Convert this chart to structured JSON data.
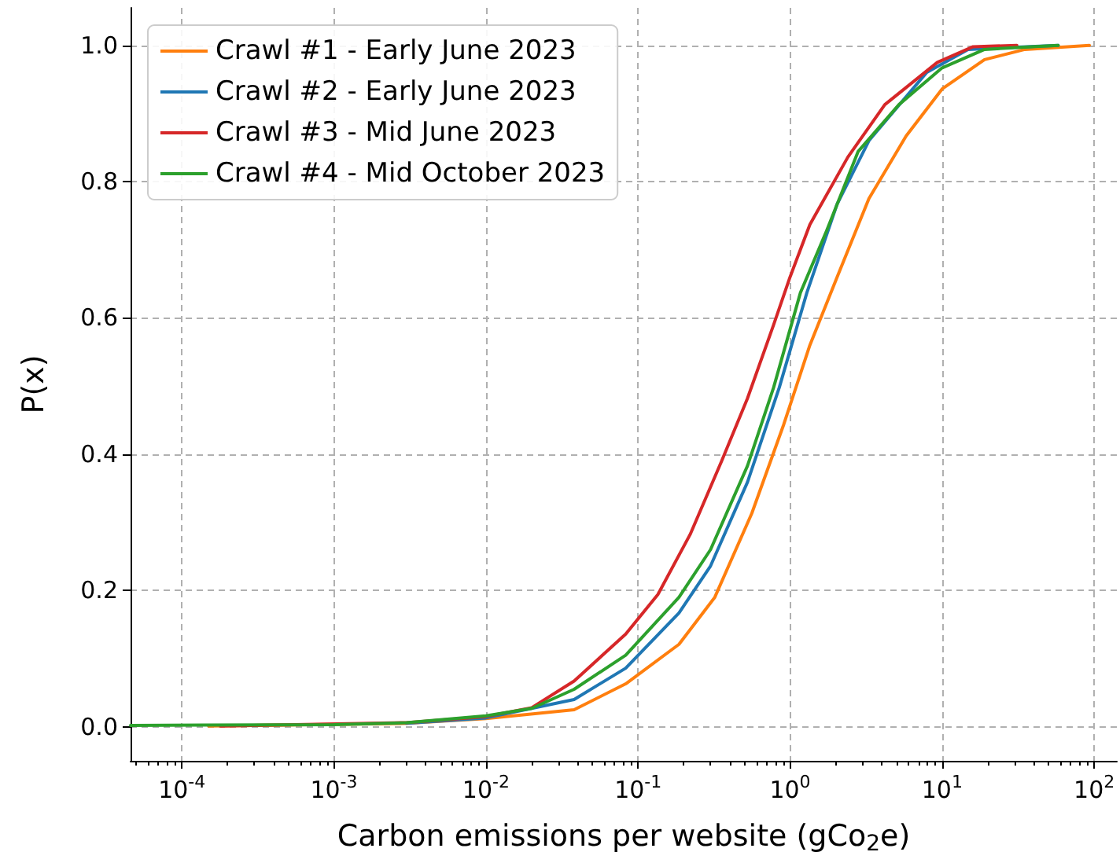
{
  "chart_data": {
    "type": "line",
    "xlabel": "Carbon emissions per website (gCo$_{2}$e)",
    "ylabel": "P(x)",
    "log": "x",
    "grid": true,
    "legend": "top left",
    "line_style": "solid",
    "xlim": [
      4.6e-05,
      141
    ],
    "ylim": [
      -0.05,
      1.055
    ],
    "xticks": [
      {
        "value": 0.0001,
        "label": "10$^{-4}$"
      },
      {
        "value": 0.001,
        "label": "10$^{-3}$"
      },
      {
        "value": 0.01,
        "label": "10$^{-2}$"
      },
      {
        "value": 0.1,
        "label": "10$^{-1}$"
      },
      {
        "value": 1,
        "label": "10$^{0}$"
      },
      {
        "value": 10,
        "label": "10$^{1}$"
      },
      {
        "value": 100,
        "label": "10$^{2}$"
      }
    ],
    "yticks": [
      {
        "value": 0,
        "label": "0.0"
      },
      {
        "value": 0.2,
        "label": "0.2"
      },
      {
        "value": 0.4,
        "label": "0.4"
      },
      {
        "value": 0.6,
        "label": "0.6"
      },
      {
        "value": 0.8,
        "label": "0.8"
      },
      {
        "value": 1,
        "label": "1.0"
      }
    ],
    "series": [
      {
        "name": "Crawl #1 - Early June 2023",
        "color": "#ff7f0e",
        "x": [
          0.00015,
          0.003,
          0.01,
          0.038,
          0.083,
          0.186,
          0.32,
          0.56,
          0.91,
          1.35,
          2.04,
          3.3,
          5.8,
          10,
          19,
          35,
          93
        ],
        "values": [
          0.001,
          0.005,
          0.012,
          0.025,
          0.063,
          0.121,
          0.19,
          0.313,
          0.444,
          0.56,
          0.66,
          0.775,
          0.867,
          0.936,
          0.979,
          0.994,
          1.0
        ]
      },
      {
        "name": "Crawl #2 - Early June 2023",
        "color": "#1f77b4",
        "x": [
          0.003,
          0.01,
          0.02,
          0.038,
          0.083,
          0.186,
          0.3,
          0.525,
          0.85,
          1.29,
          2.04,
          3.3,
          7.9,
          14.8,
          58
        ],
        "values": [
          0.005,
          0.013,
          0.027,
          0.04,
          0.086,
          0.167,
          0.236,
          0.359,
          0.498,
          0.637,
          0.767,
          0.86,
          0.96,
          0.994,
          1.0
        ]
      },
      {
        "name": "Crawl #3 - Mid June 2023",
        "color": "#d62728",
        "x": [
          0.00018,
          0.003,
          0.01,
          0.02,
          0.038,
          0.083,
          0.135,
          0.22,
          0.355,
          0.525,
          0.78,
          1,
          1.35,
          2.4,
          4.2,
          9.3,
          16,
          31
        ],
        "values": [
          0.001,
          0.006,
          0.015,
          0.028,
          0.067,
          0.136,
          0.194,
          0.282,
          0.39,
          0.482,
          0.59,
          0.66,
          0.737,
          0.836,
          0.913,
          0.975,
          0.998,
          1.0
        ]
      },
      {
        "name": "Crawl #4 - Mid October 2023",
        "color": "#2ca02c",
        "x": [
          4.6e-05,
          0.001,
          0.003,
          0.01,
          0.02,
          0.038,
          0.083,
          0.186,
          0.3,
          0.525,
          0.78,
          1.17,
          1.74,
          2.8,
          5.2,
          10,
          19,
          58
        ],
        "values": [
          0.002,
          0.003,
          0.006,
          0.016,
          0.027,
          0.055,
          0.105,
          0.19,
          0.26,
          0.383,
          0.498,
          0.637,
          0.728,
          0.844,
          0.913,
          0.967,
          0.994,
          1.0
        ]
      }
    ]
  }
}
